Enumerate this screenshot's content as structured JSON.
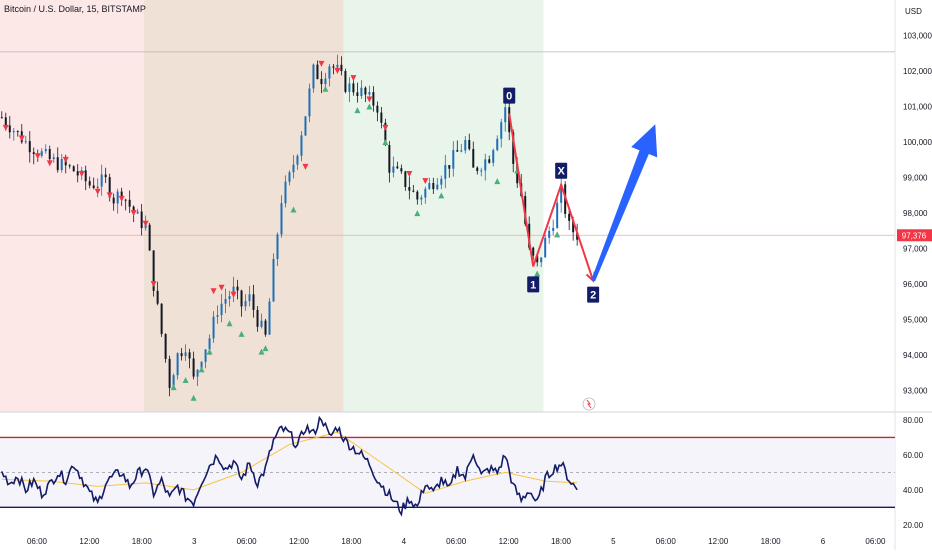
{
  "header": {
    "title": "Bitcoin / U.S. Dollar, 15, BITSTAMP",
    "currency": "USD"
  },
  "colors": {
    "up": "#26a69a",
    "down": "#131722",
    "signal_up": "#4caf78",
    "signal_down": "#f23645",
    "zone_red": "#fde8e8",
    "zone_brown": "#efe1d6",
    "zone_green": "#e9f5ea",
    "pattern": "#f23645",
    "forecast_arrow": "#2962ff",
    "rsi_line": "#131c66",
    "rsi_ma": "#f5c542",
    "rsi_upper": "#c62828",
    "rsi_lower": "#131c66"
  },
  "chart_data": {
    "type": "candlestick",
    "y_ticks": [
      "103,000",
      "102,000",
      "101,000",
      "100,000",
      "99,000",
      "98,000",
      "97,000",
      "96,000",
      "95,000",
      "94,000",
      "93,000"
    ],
    "y_values": [
      103000,
      102000,
      101000,
      100000,
      99000,
      98000,
      97000,
      96000,
      95000,
      94000,
      93000
    ],
    "ylim": [
      92400,
      104000
    ],
    "current_price": 97376,
    "current_price_label": "97,376",
    "reference_level": 102540,
    "x_ticks": [
      "06:00",
      "12:00",
      "18:00",
      "3",
      "06:00",
      "12:00",
      "18:00",
      "4",
      "06:00",
      "12:00",
      "18:00",
      "5",
      "06:00",
      "12:00",
      "18:00",
      "6",
      "06:00"
    ],
    "xlim": [
      0,
      224
    ],
    "x_tick_index": [
      0,
      1,
      2,
      3,
      4,
      5,
      6,
      7,
      8,
      9,
      10,
      11,
      12,
      13,
      14,
      15,
      16
    ],
    "zones": [
      {
        "color": "red",
        "x_range": [
          0,
          36
        ]
      },
      {
        "color": "brown",
        "x_range": [
          36,
          86
        ]
      },
      {
        "color": "green",
        "x_range": [
          86,
          136
        ]
      }
    ],
    "price_path": [
      [
        0,
        100.7
      ],
      [
        6,
        100.0
      ],
      [
        12,
        99.5
      ],
      [
        18,
        99.2
      ],
      [
        22,
        98.8
      ],
      [
        26,
        98.9
      ],
      [
        28,
        98.4
      ],
      [
        30,
        98.6
      ],
      [
        33,
        98.0
      ],
      [
        36,
        97.6
      ],
      [
        38,
        96.0
      ],
      [
        40,
        94.6
      ],
      [
        42,
        93.2
      ],
      [
        44,
        94.0
      ],
      [
        46,
        94.3
      ],
      [
        48,
        93.3
      ],
      [
        50,
        94.0
      ],
      [
        52,
        94.5
      ],
      [
        54,
        95.3
      ],
      [
        56,
        95.6
      ],
      [
        58,
        95.8
      ],
      [
        60,
        95.4
      ],
      [
        62,
        95.6
      ],
      [
        64,
        95.0
      ],
      [
        66,
        94.5
      ],
      [
        68,
        96.5
      ],
      [
        70,
        98.4
      ],
      [
        72,
        99.0
      ],
      [
        74,
        99.8
      ],
      [
        76,
        100.8
      ],
      [
        78,
        102.0
      ],
      [
        80,
        101.8
      ],
      [
        82,
        102.2
      ],
      [
        84,
        102.0
      ],
      [
        86,
        101.6
      ],
      [
        90,
        101.4
      ],
      [
        94,
        101.0
      ],
      [
        97,
        99.3
      ],
      [
        100,
        99.0
      ],
      [
        104,
        98.4
      ],
      [
        108,
        98.9
      ],
      [
        112,
        99.4
      ],
      [
        116,
        100.0
      ],
      [
        118,
        99.2
      ],
      [
        122,
        99.6
      ],
      [
        125,
        100.6
      ],
      [
        126,
        101.0
      ],
      [
        128,
        99.4
      ],
      [
        130,
        98.5
      ],
      [
        132,
        96.9
      ],
      [
        134,
        96.5
      ],
      [
        136,
        97.2
      ],
      [
        138,
        97.8
      ],
      [
        140,
        98.6
      ],
      [
        142,
        97.6
      ],
      [
        144,
        97.4
      ]
    ],
    "buy_signals": [
      [
        43,
        93.1
      ],
      [
        46,
        93.3
      ],
      [
        48,
        92.8
      ],
      [
        50,
        93.6
      ],
      [
        52,
        94.1
      ],
      [
        57,
        94.9
      ],
      [
        60,
        94.6
      ],
      [
        65,
        94.1
      ],
      [
        66,
        94.2
      ],
      [
        73,
        98.1
      ],
      [
        81,
        101.5
      ],
      [
        89,
        100.9
      ],
      [
        92,
        101.0
      ],
      [
        96,
        100.0
      ],
      [
        104,
        98.0
      ],
      [
        110,
        98.5
      ],
      [
        124,
        98.9
      ],
      [
        129,
        99.2
      ],
      [
        134,
        96.3
      ],
      [
        139,
        97.4
      ]
    ],
    "sell_signals": [
      [
        1,
        100.4
      ],
      [
        5,
        100.1
      ],
      [
        9,
        99.6
      ],
      [
        12,
        99.4
      ],
      [
        16,
        99.5
      ],
      [
        20,
        99.1
      ],
      [
        24,
        98.6
      ],
      [
        27,
        98.5
      ],
      [
        30,
        98.4
      ],
      [
        33,
        98.0
      ],
      [
        36,
        97.7
      ],
      [
        38,
        96.0
      ],
      [
        53,
        95.8
      ],
      [
        55,
        95.9
      ],
      [
        58,
        95.7
      ],
      [
        76,
        99.3
      ],
      [
        80,
        102.2
      ],
      [
        84,
        102.0
      ],
      [
        88,
        101.8
      ],
      [
        92,
        101.2
      ],
      [
        96,
        100.4
      ],
      [
        102,
        99.1
      ],
      [
        106,
        98.9
      ]
    ],
    "pattern_points": [
      {
        "label": "0",
        "x": 127,
        "y": 100.8
      },
      {
        "label": "1",
        "x": 133,
        "y": 96.5
      },
      {
        "label": "X",
        "x": 140,
        "y": 98.8
      },
      {
        "label": "2",
        "x": 148,
        "y": 96.1
      }
    ],
    "forecast_arrow": {
      "from": [
        148,
        96.1
      ],
      "to": [
        164,
        100.5
      ]
    },
    "rsi": {
      "y_ticks": [
        "80.00",
        "60.00",
        "40.00",
        "20.00"
      ],
      "y_values": [
        80,
        60,
        40,
        20
      ],
      "ylim": [
        17,
        84
      ],
      "upper_level": 70,
      "lower_level": 30,
      "dashed_level": 50,
      "values": [
        [
          0,
          50
        ],
        [
          2,
          44
        ],
        [
          4,
          48
        ],
        [
          6,
          40
        ],
        [
          8,
          45
        ],
        [
          10,
          38
        ],
        [
          12,
          43
        ],
        [
          14,
          50
        ],
        [
          16,
          46
        ],
        [
          18,
          55
        ],
        [
          20,
          47
        ],
        [
          22,
          38
        ],
        [
          24,
          32
        ],
        [
          26,
          44
        ],
        [
          28,
          48
        ],
        [
          30,
          50
        ],
        [
          32,
          42
        ],
        [
          34,
          49
        ],
        [
          36,
          53
        ],
        [
          38,
          38
        ],
        [
          40,
          45
        ],
        [
          42,
          35
        ],
        [
          44,
          42
        ],
        [
          46,
          36
        ],
        [
          48,
          33
        ],
        [
          50,
          45
        ],
        [
          52,
          54
        ],
        [
          54,
          60
        ],
        [
          56,
          52
        ],
        [
          58,
          56
        ],
        [
          60,
          46
        ],
        [
          62,
          55
        ],
        [
          64,
          44
        ],
        [
          66,
          52
        ],
        [
          68,
          68
        ],
        [
          70,
          75
        ],
        [
          72,
          72
        ],
        [
          74,
          65
        ],
        [
          76,
          76
        ],
        [
          78,
          72
        ],
        [
          80,
          82
        ],
        [
          82,
          70
        ],
        [
          84,
          76
        ],
        [
          86,
          68
        ],
        [
          88,
          64
        ],
        [
          90,
          60
        ],
        [
          92,
          55
        ],
        [
          94,
          46
        ],
        [
          96,
          40
        ],
        [
          98,
          34
        ],
        [
          100,
          28
        ],
        [
          102,
          35
        ],
        [
          104,
          30
        ],
        [
          106,
          44
        ],
        [
          108,
          38
        ],
        [
          110,
          46
        ],
        [
          112,
          40
        ],
        [
          114,
          52
        ],
        [
          116,
          47
        ],
        [
          118,
          62
        ],
        [
          120,
          48
        ],
        [
          122,
          52
        ],
        [
          124,
          50
        ],
        [
          126,
          60
        ],
        [
          128,
          42
        ],
        [
          130,
          34
        ],
        [
          132,
          40
        ],
        [
          134,
          32
        ],
        [
          136,
          46
        ],
        [
          138,
          52
        ],
        [
          140,
          55
        ],
        [
          142,
          46
        ],
        [
          144,
          40
        ]
      ],
      "ma": [
        [
          0,
          46
        ],
        [
          12,
          45
        ],
        [
          24,
          42
        ],
        [
          36,
          44
        ],
        [
          48,
          40
        ],
        [
          60,
          50
        ],
        [
          72,
          66
        ],
        [
          84,
          73
        ],
        [
          96,
          54
        ],
        [
          106,
          38
        ],
        [
          116,
          45
        ],
        [
          126,
          50
        ],
        [
          136,
          45
        ],
        [
          144,
          44
        ]
      ]
    }
  }
}
